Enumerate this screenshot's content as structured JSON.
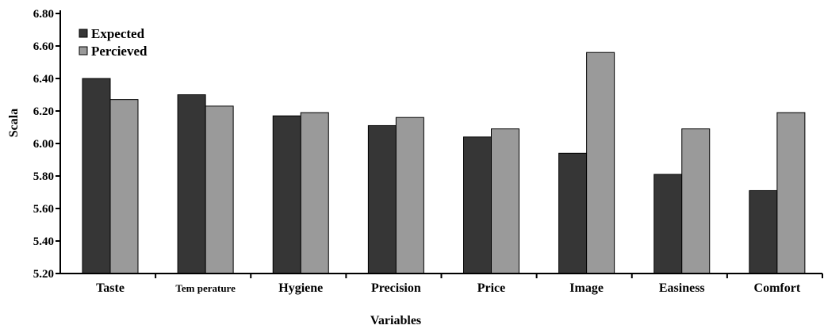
{
  "chart_data": {
    "type": "bar",
    "title": "",
    "xlabel": "Variables",
    "ylabel": "Scala",
    "ylim": [
      5.2,
      6.8
    ],
    "yticks": [
      5.2,
      5.4,
      5.6,
      5.8,
      6.0,
      6.2,
      6.4,
      6.6,
      6.8
    ],
    "ytick_labels": [
      "5.20",
      "5.40",
      "5.60",
      "5.80",
      "6.00",
      "6.20",
      "6.40",
      "6.60",
      "6.80"
    ],
    "categories": [
      "Taste",
      "Tem perature",
      "Hygiene",
      "Precision",
      "Price",
      "Image",
      "Easiness",
      "Comfort"
    ],
    "series": [
      {
        "name": "Expected",
        "color": "#363636",
        "values": [
          6.4,
          6.3,
          6.17,
          6.11,
          6.04,
          5.94,
          5.81,
          5.71
        ]
      },
      {
        "name": "Percieved",
        "color": "#9a9a9a",
        "values": [
          6.27,
          6.23,
          6.19,
          6.16,
          6.09,
          6.56,
          6.09,
          6.19
        ]
      }
    ],
    "legend_position": "top-left",
    "grid": false
  }
}
